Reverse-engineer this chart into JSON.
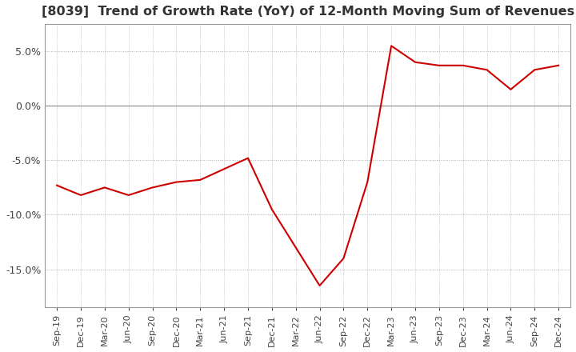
{
  "title": "[8039]  Trend of Growth Rate (YoY) of 12-Month Moving Sum of Revenues",
  "title_fontsize": 11.5,
  "line_color": "#cc0000",
  "background_color": "#ffffff",
  "grid_color": "#aaaaaa",
  "zero_line_color": "#888888",
  "ylim": [
    -0.185,
    0.075
  ],
  "yticks": [
    0.05,
    0.0,
    -0.05,
    -0.1,
    -0.15
  ],
  "xlabels": [
    "Sep-19",
    "Dec-19",
    "Mar-20",
    "Jun-20",
    "Sep-20",
    "Dec-20",
    "Mar-21",
    "Jun-21",
    "Sep-21",
    "Dec-21",
    "Mar-22",
    "Jun-22",
    "Sep-22",
    "Dec-22",
    "Mar-23",
    "Jun-23",
    "Sep-23",
    "Dec-23",
    "Mar-24",
    "Jun-24",
    "Sep-24",
    "Dec-24"
  ],
  "values": [
    -0.073,
    -0.082,
    -0.075,
    -0.082,
    -0.075,
    -0.07,
    -0.068,
    -0.058,
    -0.048,
    -0.095,
    -0.13,
    -0.165,
    -0.14,
    -0.07,
    0.055,
    0.04,
    0.037,
    0.037,
    0.033,
    0.015,
    0.033,
    0.037
  ]
}
